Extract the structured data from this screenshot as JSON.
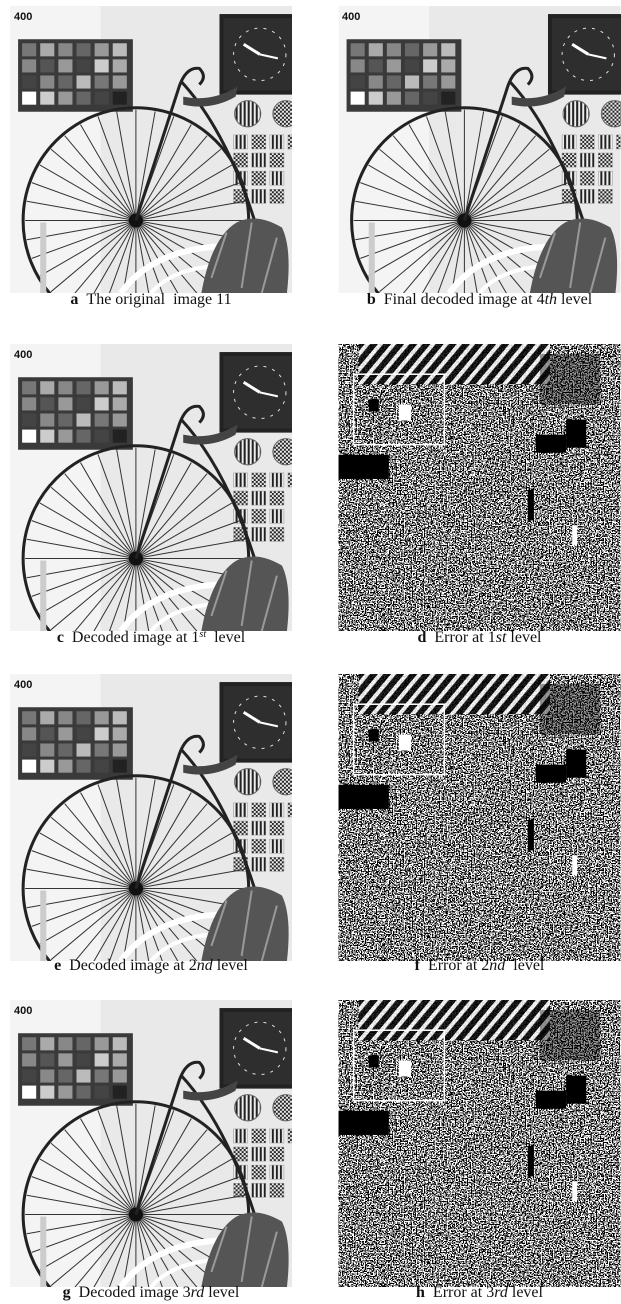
{
  "panels": [
    {
      "letter": "a",
      "image_label": "400",
      "caption": [
        {
          "text": "The original  image 11"
        }
      ]
    },
    {
      "letter": "b",
      "image_label": "400",
      "caption": [
        {
          "text": "Final decoded image at 4"
        },
        {
          "text": "th",
          "style": "italic"
        },
        {
          "text": " level"
        }
      ]
    },
    {
      "letter": "c",
      "image_label": "400",
      "caption": [
        {
          "text": "Decoded image at 1"
        },
        {
          "text": "st",
          "style": "sup"
        },
        {
          "text": "  level"
        }
      ]
    },
    {
      "letter": "d",
      "caption": [
        {
          "text": "Error at 1"
        },
        {
          "text": "st",
          "style": "italic"
        },
        {
          "text": " level"
        }
      ]
    },
    {
      "letter": "e",
      "image_label": "400",
      "caption": [
        {
          "text": "Decoded image at 2"
        },
        {
          "text": "nd",
          "style": "italic"
        },
        {
          "text": " level"
        }
      ]
    },
    {
      "letter": "f",
      "caption": [
        {
          "text": "Error at 2"
        },
        {
          "text": "nd",
          "style": "italic"
        },
        {
          "text": "  level"
        }
      ]
    },
    {
      "letter": "g",
      "image_label": "400",
      "caption": [
        {
          "text": "Decoded image 3"
        },
        {
          "text": "rd",
          "style": "italic"
        },
        {
          "text": " level"
        }
      ]
    },
    {
      "letter": "h",
      "caption": [
        {
          "text": "Error at 3"
        },
        {
          "text": "rd",
          "style": "italic"
        },
        {
          "text": " level"
        }
      ]
    }
  ]
}
